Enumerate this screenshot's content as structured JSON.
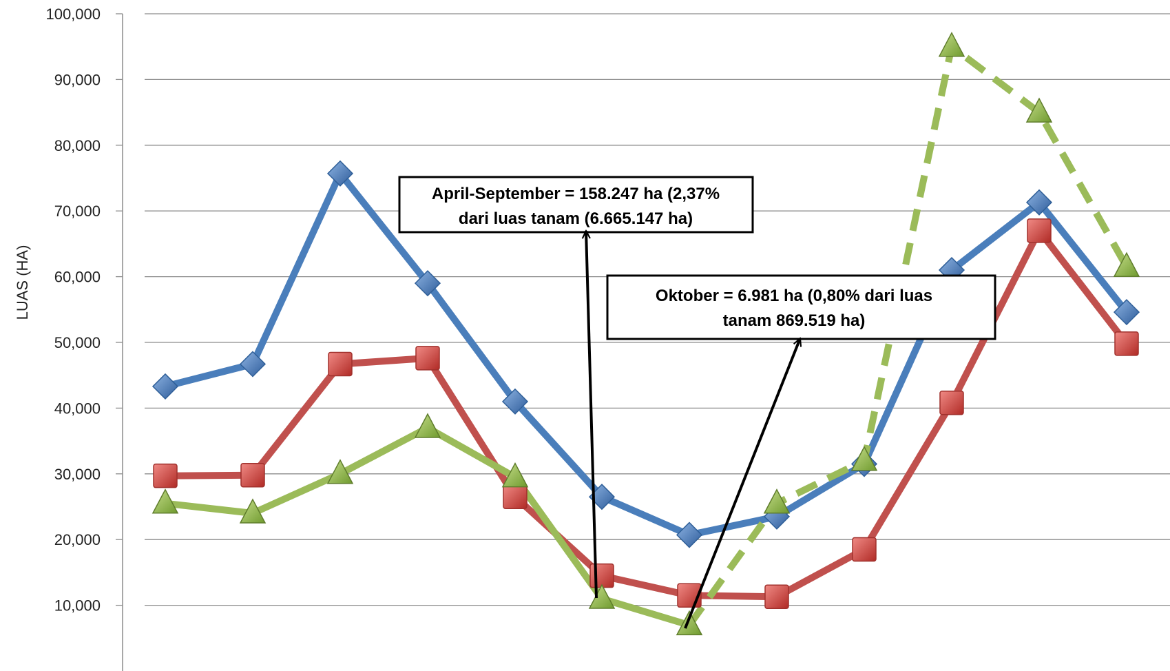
{
  "chart_data": {
    "type": "line",
    "title": "",
    "xlabel": "",
    "ylabel": "LUAS  (HA)",
    "ylim": [
      0,
      100000
    ],
    "yticks": [
      10000,
      20000,
      30000,
      40000,
      50000,
      60000,
      70000,
      80000,
      90000,
      100000
    ],
    "ytick_labels": [
      "10,000",
      "20,000",
      "30,000",
      "40,000",
      "50,000",
      "60,000",
      "70,000",
      "80,000",
      "90,000",
      "100,000"
    ],
    "grid": true,
    "legend": "none",
    "x": [
      1,
      2,
      3,
      4,
      5,
      6,
      7,
      8,
      9,
      10,
      11,
      12
    ],
    "series": [
      {
        "color": "#4a7ebb",
        "marker": "diamond",
        "line_style": "solid",
        "values": [
          43300,
          46700,
          75700,
          59000,
          41000,
          26500,
          20700,
          23500,
          31500,
          61000,
          71300,
          54600
        ]
      },
      {
        "color": "#c0504d",
        "marker": "square",
        "line_style": "solid",
        "values": [
          29700,
          29800,
          46700,
          47600,
          26500,
          14500,
          11500,
          11300,
          18500,
          40800,
          67000,
          49800
        ]
      },
      {
        "color": "#9bbb59",
        "marker": "triangle",
        "line_style": "solid",
        "values": [
          25500,
          24000,
          30000,
          37000,
          29500,
          11000,
          6981,
          null,
          null,
          null,
          null,
          null
        ]
      },
      {
        "color": "#9bbb59",
        "marker": "triangle",
        "line_style": "dashed",
        "values": [
          null,
          null,
          null,
          null,
          null,
          null,
          6981,
          25500,
          32000,
          95000,
          85000,
          61500
        ]
      }
    ],
    "annotations": [
      {
        "lines": [
          "April-September = 158.247 ha  (2,37%",
          "dari luas tanam (6.665.147 ha)"
        ],
        "arrow_to": {
          "x": 6,
          "y": 11000
        }
      },
      {
        "lines": [
          "Oktober =  6.981 ha (0,80%  dari luas",
          "tanam 869.519 ha)"
        ],
        "arrow_to": {
          "x": 7,
          "y": 6981
        }
      }
    ]
  }
}
